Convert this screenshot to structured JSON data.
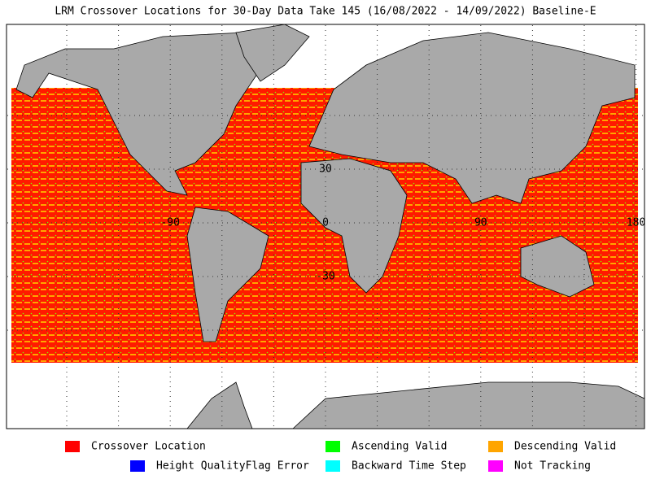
{
  "title": "LRM Crossover Locations for 30-Day Data Take 145 (16/08/2022 - 14/09/2022) Baseline-E",
  "map": {
    "lon_labels": [
      -90,
      0,
      90,
      180
    ],
    "lat_labels": [
      30,
      -30
    ]
  },
  "legend": [
    {
      "label": "Crossover Location",
      "color": "#ff0000"
    },
    {
      "label": "Ascending Valid",
      "color": "#00ff00"
    },
    {
      "label": "Descending Valid",
      "color": "#ffa500"
    },
    {
      "label": "Height QualityFlag Error",
      "color": "#0000ff"
    },
    {
      "label": "Backward Time Step",
      "color": "#00ffff"
    },
    {
      "label": "Not Tracking",
      "color": "#ff00ff"
    }
  ]
}
